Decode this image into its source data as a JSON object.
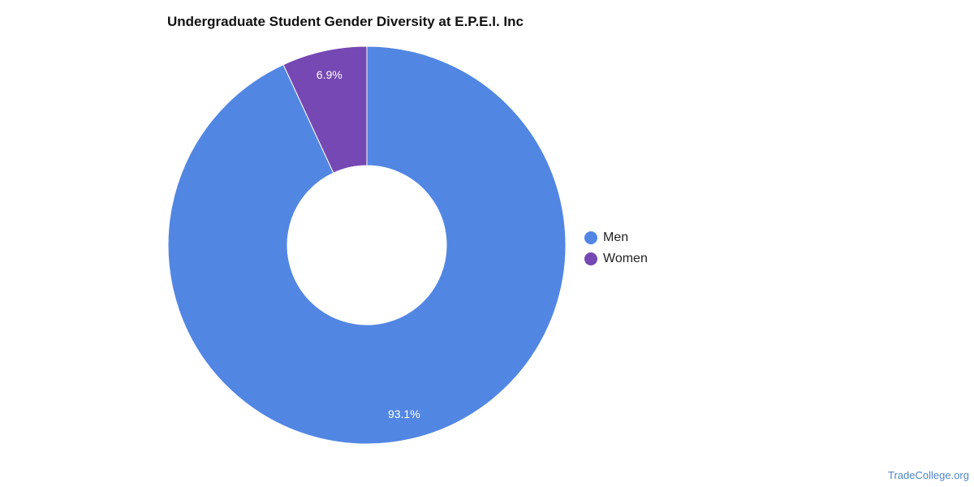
{
  "title": "Undergraduate Student Gender Diversity at E.P.E.I. Inc",
  "chart_data": {
    "type": "pie",
    "donut": true,
    "categories": [
      "Men",
      "Women"
    ],
    "values": [
      93.1,
      6.9
    ],
    "value_labels": [
      "93.1%",
      "6.9%"
    ],
    "colors": [
      "#5286e3",
      "#7648b3"
    ],
    "legend_position": "right"
  },
  "legend": {
    "items": [
      {
        "label": "Men",
        "color": "#5286e3"
      },
      {
        "label": "Women",
        "color": "#7648b3"
      }
    ]
  },
  "footer": {
    "credit": "TradeCollege.org"
  }
}
